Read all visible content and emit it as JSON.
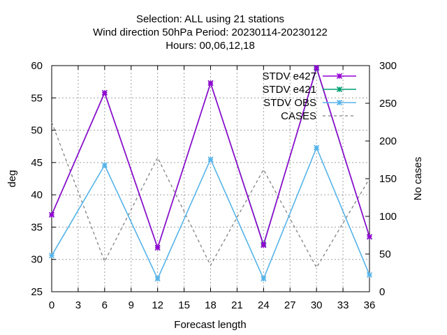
{
  "chart_data": {
    "type": "line",
    "title": [
      "Selection: ALL using    21 stations",
      "Wind direction 50hPa   Period: 20230114-20230122",
      "Hours:  00,06,12,18"
    ],
    "xlabel": "Forecast length",
    "ylabel": "deg",
    "y2label": "No cases",
    "xlim": [
      0,
      36
    ],
    "xticks": [
      "0",
      "3",
      "6",
      "9",
      "12",
      "15",
      "18",
      "21",
      "24",
      "27",
      "30",
      "33",
      "36"
    ],
    "ylim": [
      25,
      60
    ],
    "yticks": [
      "25",
      "30",
      "35",
      "40",
      "45",
      "50",
      "55",
      "60"
    ],
    "y2lim": [
      0,
      300
    ],
    "y2ticks": [
      "0",
      "50",
      "100",
      "150",
      "200",
      "250",
      "300"
    ],
    "grid": true,
    "legend_position": "top-right",
    "x": [
      0,
      6,
      12,
      18,
      24,
      30,
      36
    ],
    "series": [
      {
        "name": "STDV e427",
        "axis": "y",
        "color": "#9400d3",
        "marker": "x",
        "values": [
          36.9,
          55.8,
          31.8,
          57.3,
          32.2,
          59.7,
          33.5
        ]
      },
      {
        "name": "STDV e421",
        "axis": "y",
        "color": "#009e73",
        "marker": "x",
        "values": [
          36.9,
          55.8,
          31.8,
          57.3,
          32.3,
          59.6,
          33.5
        ]
      },
      {
        "name": "STDV OBS",
        "axis": "y",
        "color": "#56b4e9",
        "marker": "x",
        "values": [
          30.6,
          44.6,
          27.0,
          45.5,
          27.0,
          47.3,
          27.6
        ]
      },
      {
        "name": "CASES",
        "axis": "y2",
        "color": "#808080",
        "dashed": true,
        "values": [
          225,
          40,
          178,
          35,
          162,
          32,
          150
        ]
      }
    ]
  }
}
